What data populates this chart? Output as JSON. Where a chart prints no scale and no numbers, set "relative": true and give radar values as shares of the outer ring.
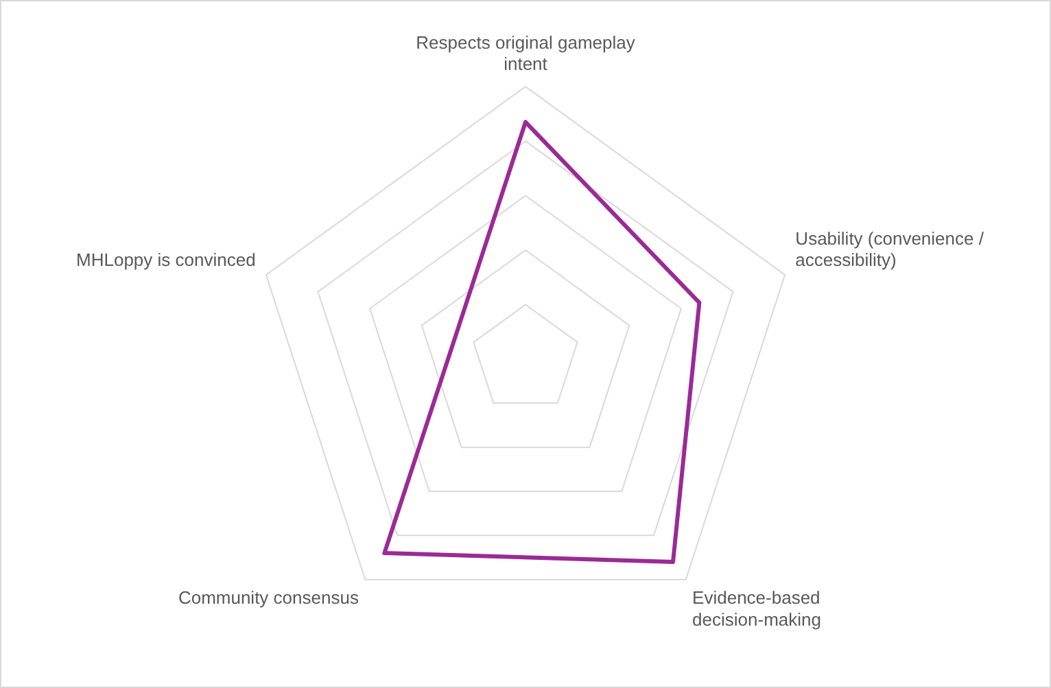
{
  "chart_data": {
    "type": "radar",
    "categories": [
      "Respects original gameplay intent",
      "Usability (convenience / accessibility)",
      "Evidence-based decision-making",
      "Community consensus",
      "MHLoppy is convinced"
    ],
    "relative": true,
    "grid": true,
    "legend": false,
    "marker": "none",
    "series": [
      {
        "color": "#9b2a96",
        "values": [
          0.87,
          0.67,
          0.92,
          0.88,
          0.27
        ]
      }
    ]
  }
}
